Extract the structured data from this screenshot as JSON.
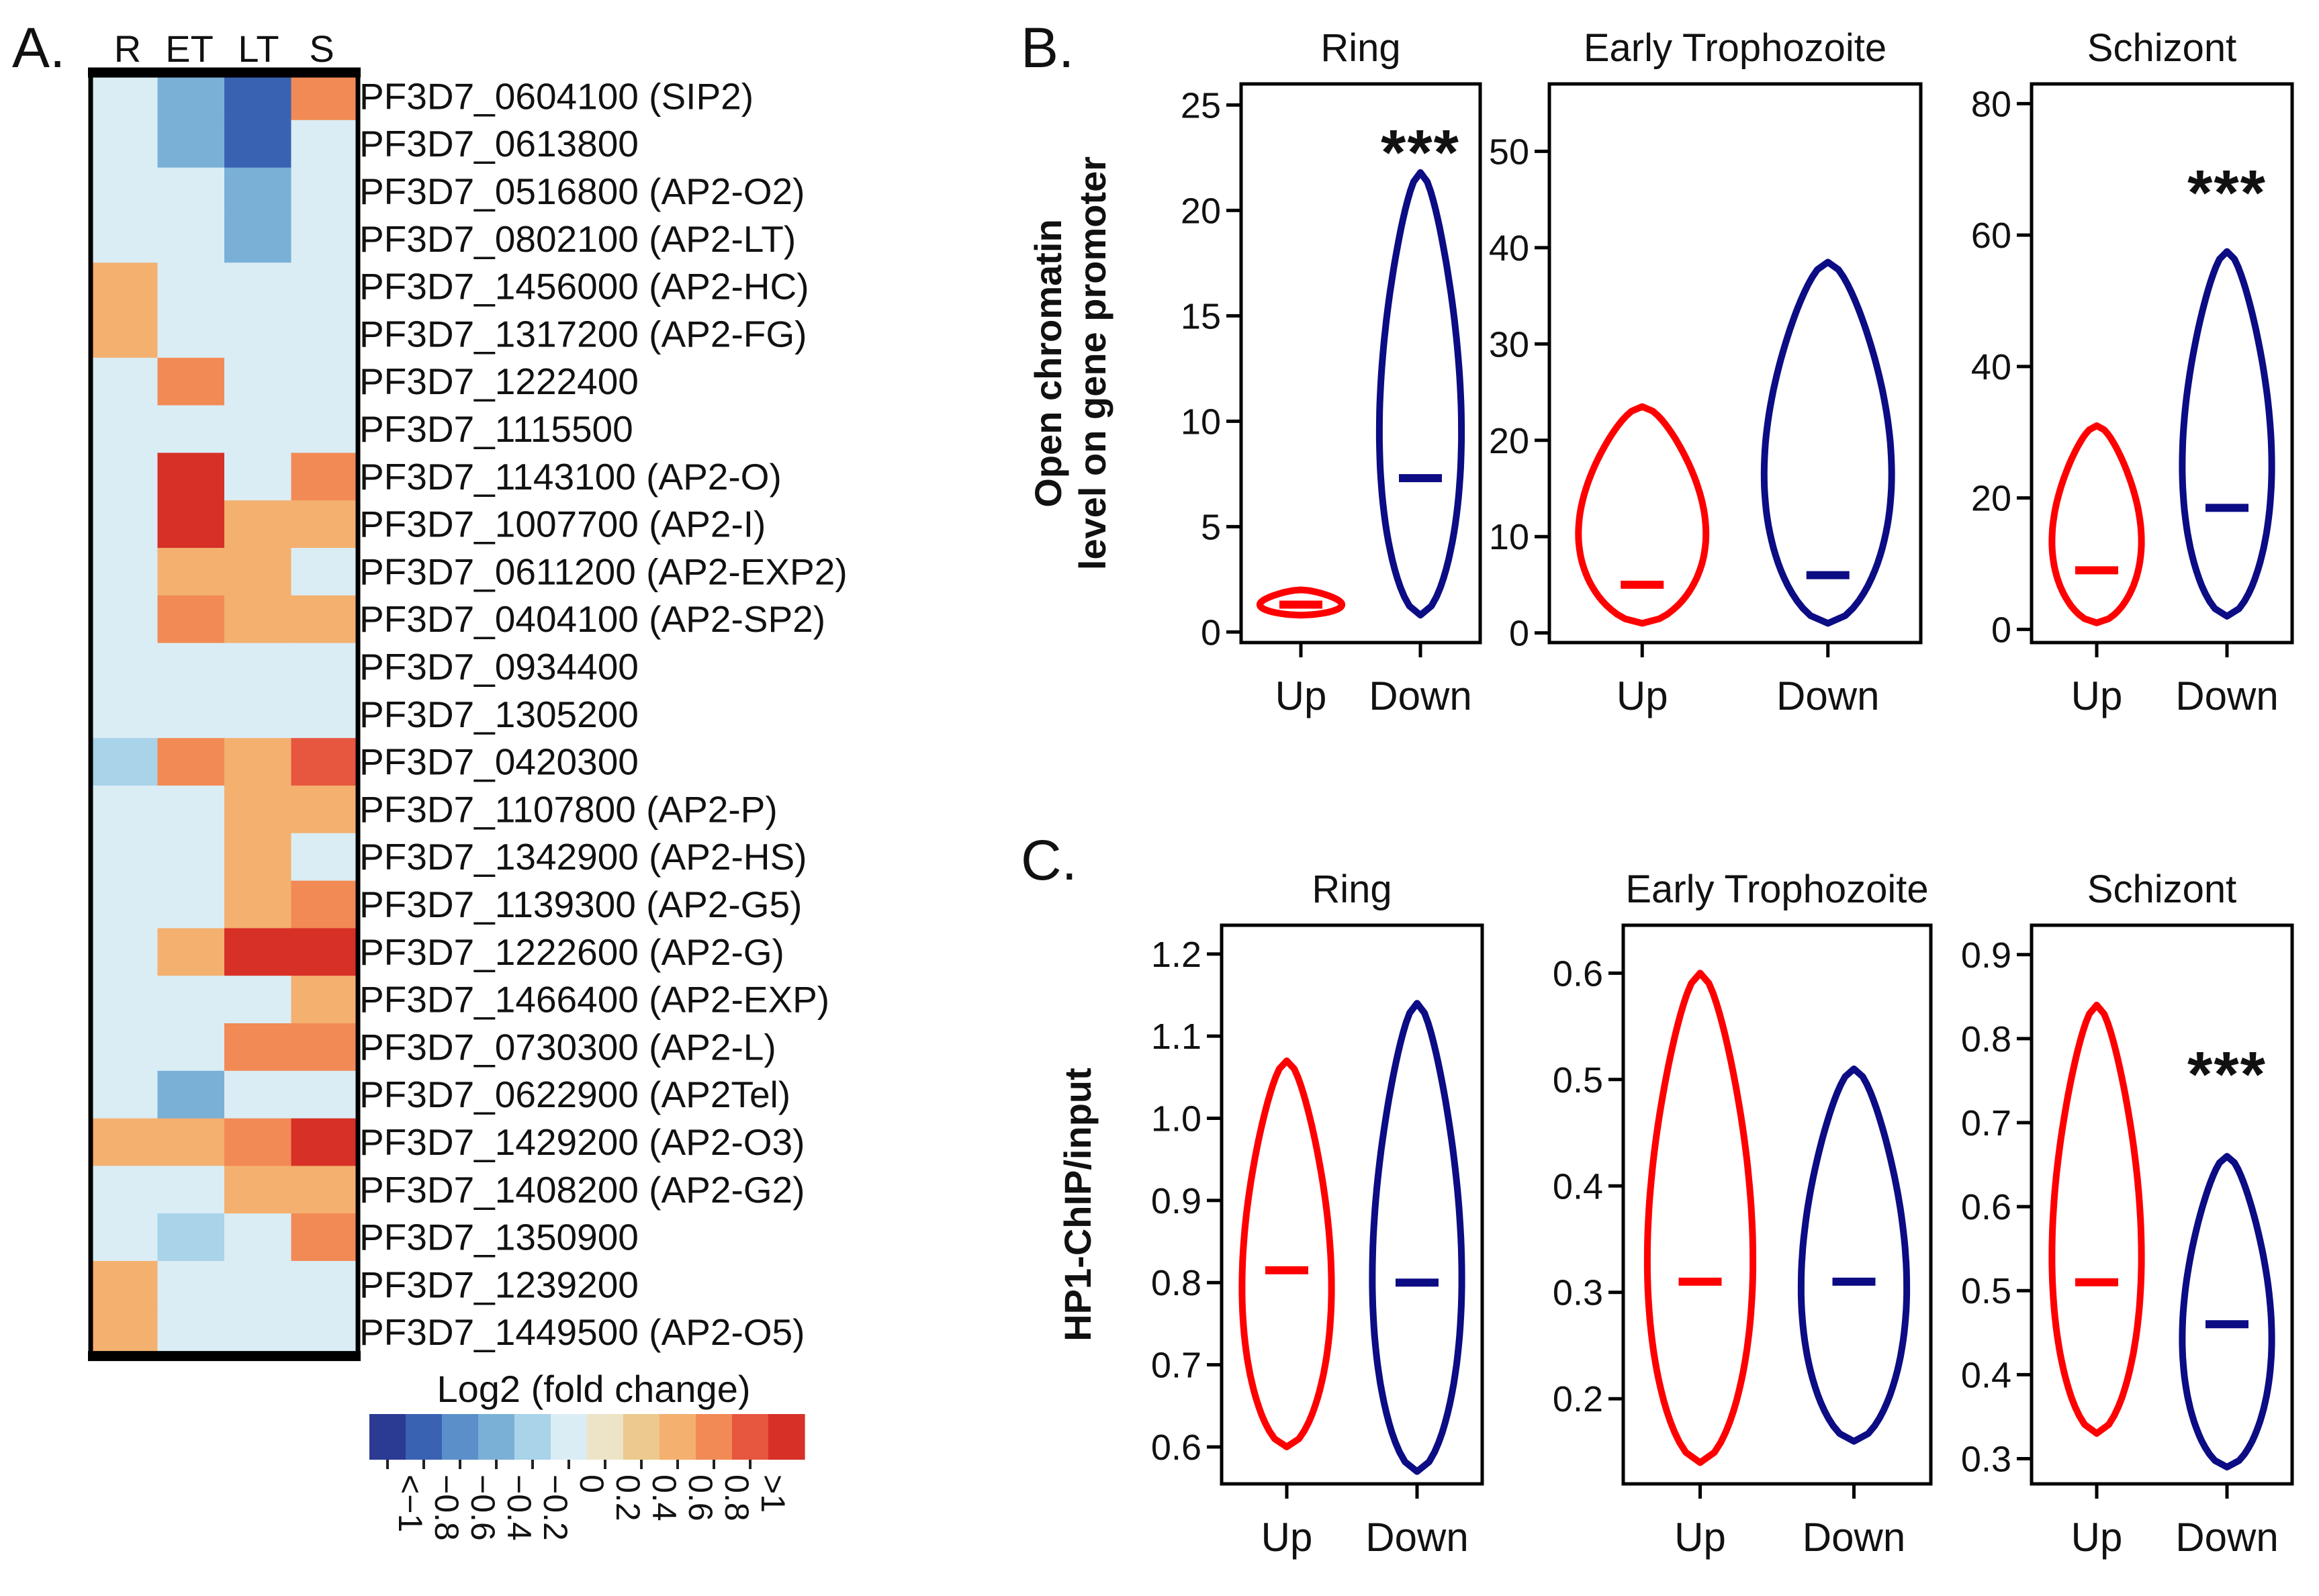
{
  "panel_a": {
    "letter": "A.",
    "columns": [
      "R",
      "ET",
      "LT",
      "S"
    ],
    "colorbar": {
      "title": "Log2 (fold change)",
      "colors": [
        "#2b3a93",
        "#3a62b3",
        "#5b8fc9",
        "#7ab0d6",
        "#a8d3e9",
        "#daedf5",
        "#ede4c8",
        "#edc98f",
        "#f4b06f",
        "#f28a55",
        "#e7563f",
        "#d73027"
      ],
      "tick_labels": [
        "<−1",
        "−0.8",
        "−0.6",
        "−0.4",
        "−0.2",
        "0",
        "0.2",
        "0.4",
        "0.6",
        "0.8",
        ">1"
      ]
    }
  },
  "chart_data": [
    {
      "type": "heatmap",
      "title": "",
      "columns": [
        "R",
        "ET",
        "LT",
        "S"
      ],
      "rows": [
        "PF3D7_0604100 (SIP2)",
        "PF3D7_0613800",
        "PF3D7_0516800 (AP2-O2)",
        "PF3D7_0802100 (AP2-LT)",
        "PF3D7_1456000 (AP2-HC)",
        "PF3D7_1317200 (AP2-FG)",
        "PF3D7_1222400",
        "PF3D7_1115500",
        "PF3D7_1143100 (AP2-O)",
        "PF3D7_1007700 (AP2-I)",
        "PF3D7_0611200 (AP2-EXP2)",
        "PF3D7_0404100 (AP2-SP2)",
        "PF3D7_0934400",
        "PF3D7_1305200",
        "PF3D7_0420300",
        "PF3D7_1107800 (AP2-P)",
        "PF3D7_1342900 (AP2-HS)",
        "PF3D7_1139300 (AP2-G5)",
        "PF3D7_1222600 (AP2-G)",
        "PF3D7_1466400 (AP2-EXP)",
        "PF3D7_0730300 (AP2-L)",
        "PF3D7_0622900 (AP2Tel)",
        "PF3D7_1429200 (AP2-O3)",
        "PF3D7_1408200 (AP2-G2)",
        "PF3D7_1350900",
        "PF3D7_1239200",
        "PF3D7_1449500 (AP2-O5)"
      ],
      "values": [
        [
          0.0,
          -0.5,
          -0.9,
          0.7
        ],
        [
          0.0,
          -0.5,
          -0.9,
          0.0
        ],
        [
          0.0,
          0.0,
          -0.4,
          0.0
        ],
        [
          0.0,
          -0.1,
          -0.4,
          -0.1
        ],
        [
          0.4,
          0.0,
          -0.1,
          -0.1
        ],
        [
          0.4,
          0.0,
          0.0,
          0.0
        ],
        [
          0.0,
          0.7,
          0.0,
          0.0
        ],
        [
          -0.1,
          0.0,
          -0.1,
          -0.1
        ],
        [
          -0.1,
          1.0,
          0.0,
          0.7
        ],
        [
          0.0,
          1.0,
          0.5,
          0.5
        ],
        [
          0.0,
          0.5,
          0.5,
          -0.1
        ],
        [
          0.0,
          0.7,
          0.5,
          0.5
        ],
        [
          0.0,
          0.0,
          0.0,
          0.0
        ],
        [
          0.0,
          0.0,
          0.0,
          0.0
        ],
        [
          -0.3,
          0.7,
          0.5,
          0.9
        ],
        [
          -0.1,
          0.0,
          0.5,
          0.5
        ],
        [
          0.0,
          0.0,
          0.5,
          0.0
        ],
        [
          -0.1,
          0.0,
          0.5,
          0.7
        ],
        [
          -0.1,
          0.5,
          1.0,
          1.2
        ],
        [
          -0.1,
          -0.1,
          0.0,
          0.5
        ],
        [
          0.0,
          -0.1,
          0.7,
          0.7
        ],
        [
          -0.1,
          -0.5,
          0.0,
          0.0
        ],
        [
          0.5,
          0.5,
          0.7,
          1.0
        ],
        [
          0.0,
          -0.1,
          0.5,
          0.5
        ],
        [
          0.0,
          -0.3,
          0.0,
          0.7
        ],
        [
          0.5,
          -0.1,
          0.0,
          0.0
        ],
        [
          0.5,
          -0.1,
          0.0,
          0.0
        ]
      ],
      "colorbar_title": "Log2 (fold change)"
    },
    {
      "type": "violin",
      "panel": "B.",
      "title": "Ring",
      "ylabel": "Open chromatin level on gene promoter",
      "categories": [
        "Up",
        "Down"
      ],
      "ylim": [
        -0.5,
        26
      ],
      "yticks": [
        "0",
        "5",
        "10",
        "15",
        "20",
        "25"
      ],
      "annotation": "***",
      "series": [
        {
          "name": "Up",
          "color": "#ff0000",
          "min": 0.8,
          "max": 2.0,
          "median": 1.3
        },
        {
          "name": "Down",
          "color": "#0c0c84",
          "min": 0.8,
          "max": 21.8,
          "median": 7.3
        }
      ]
    },
    {
      "type": "violin",
      "panel": "B.",
      "title": "Early Trophozoite",
      "categories": [
        "Up",
        "Down"
      ],
      "ylim": [
        -1,
        57
      ],
      "yticks": [
        "0",
        "10",
        "20",
        "30",
        "40",
        "50"
      ],
      "annotation": "",
      "series": [
        {
          "name": "Up",
          "color": "#ff0000",
          "min": 1.0,
          "max": 23.5,
          "median": 5.0
        },
        {
          "name": "Down",
          "color": "#0c0c84",
          "min": 1.0,
          "max": 38.5,
          "median": 6.0
        }
      ]
    },
    {
      "type": "violin",
      "panel": "B.",
      "title": "Schizont",
      "categories": [
        "Up",
        "Down"
      ],
      "ylim": [
        -2,
        83
      ],
      "yticks": [
        "0",
        "20",
        "40",
        "60",
        "80"
      ],
      "annotation": "***",
      "series": [
        {
          "name": "Up",
          "color": "#ff0000",
          "min": 1.0,
          "max": 31.0,
          "median": 9.0
        },
        {
          "name": "Down",
          "color": "#0c0c84",
          "min": 2.0,
          "max": 57.5,
          "median": 18.5
        }
      ]
    },
    {
      "type": "violin",
      "panel": "C.",
      "title": "Ring",
      "ylabel": "HP1-ChIP/input",
      "categories": [
        "Up",
        "Down"
      ],
      "ylim": [
        0.555,
        1.235
      ],
      "yticks": [
        "0.6",
        "0.7",
        "0.8",
        "0.9",
        "1.0",
        "1.1",
        "1.2"
      ],
      "annotation": "",
      "series": [
        {
          "name": "Up",
          "color": "#ff0000",
          "min": 0.6,
          "max": 1.07,
          "median": 0.815
        },
        {
          "name": "Down",
          "color": "#0c0c84",
          "min": 0.57,
          "max": 1.14,
          "median": 0.8
        }
      ]
    },
    {
      "type": "violin",
      "panel": "C.",
      "title": "Early Trophozoite",
      "categories": [
        "Up",
        "Down"
      ],
      "ylim": [
        0.12,
        0.645
      ],
      "yticks": [
        "0.2",
        "0.3",
        "0.4",
        "0.5",
        "0.6"
      ],
      "annotation": "",
      "series": [
        {
          "name": "Up",
          "color": "#ff0000",
          "min": 0.14,
          "max": 0.6,
          "median": 0.31
        },
        {
          "name": "Down",
          "color": "#0c0c84",
          "min": 0.16,
          "max": 0.51,
          "median": 0.31
        }
      ]
    },
    {
      "type": "violin",
      "panel": "C.",
      "title": "Schizont",
      "categories": [
        "Up",
        "Down"
      ],
      "ylim": [
        0.27,
        0.935
      ],
      "yticks": [
        "0.3",
        "0.4",
        "0.5",
        "0.6",
        "0.7",
        "0.8",
        "0.9"
      ],
      "annotation": "***",
      "series": [
        {
          "name": "Up",
          "color": "#ff0000",
          "min": 0.33,
          "max": 0.84,
          "median": 0.51
        },
        {
          "name": "Down",
          "color": "#0c0c84",
          "min": 0.29,
          "max": 0.66,
          "median": 0.46
        }
      ]
    }
  ]
}
